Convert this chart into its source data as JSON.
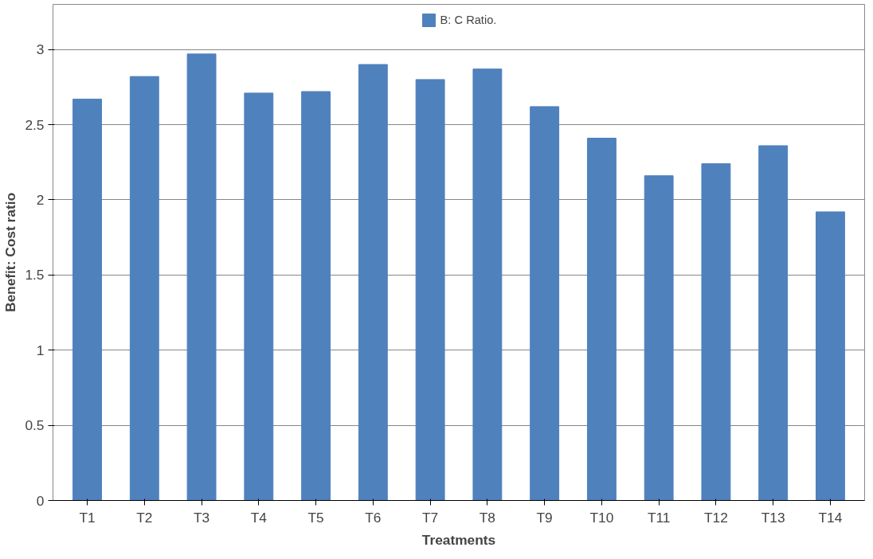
{
  "chart_data": {
    "type": "bar",
    "xlabel": "Treatments",
    "ylabel": "Benefit: Cost ratio",
    "categories": [
      "T1",
      "T2",
      "T3",
      "T4",
      "T5",
      "T6",
      "T7",
      "T8",
      "T9",
      "T10",
      "T11",
      "T12",
      "T13",
      "T14"
    ],
    "series": [
      {
        "name": "B: C Ratio.",
        "color": "#4f81bd",
        "values": [
          2.67,
          2.82,
          2.97,
          2.71,
          2.72,
          2.9,
          2.8,
          2.87,
          2.62,
          2.41,
          2.16,
          2.24,
          2.36,
          1.92
        ]
      }
    ],
    "ylim": [
      0,
      3.3
    ],
    "yticks": [
      0,
      0.5,
      1,
      1.5,
      2,
      2.5,
      3
    ],
    "grid": "y",
    "legend": "top"
  }
}
